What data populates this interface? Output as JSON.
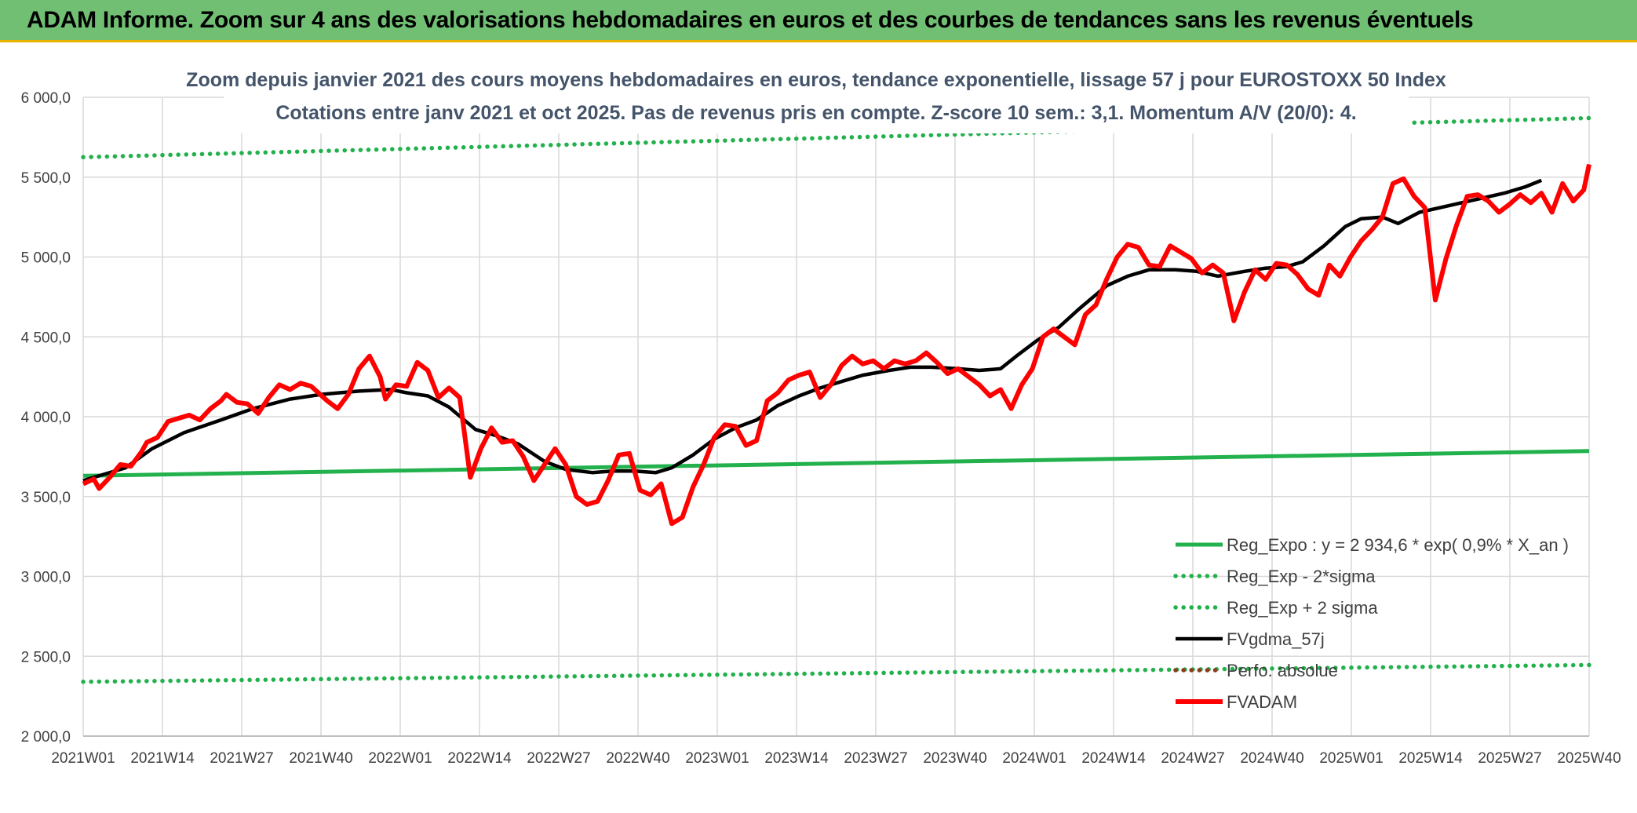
{
  "banner": {
    "title": "ADAM Informe. Zoom sur 4 ans des valorisations hebdomadaires en euros et des courbes de tendances sans les revenus éventuels"
  },
  "chart_data": {
    "type": "line",
    "title": "Zoom depuis janvier 2021 des cours moyens hebdomadaires en euros, tendance exponentielle, lissage 57 j pour EUROSTOXX 50 Index",
    "subtitle": "Cotations entre janv 2021 et oct 2025. Pas de revenus pris en compte. Z-score 10 sem.: 3,1. Momentum A/V (20/0): 4.",
    "xlabel": "",
    "ylabel": "",
    "ylim": [
      2000,
      6000
    ],
    "y_ticks": [
      "2 000,0",
      "2 500,0",
      "3 000,0",
      "3 500,0",
      "4 000,0",
      "4 500,0",
      "5 000,0",
      "5 500,0",
      "6 000,0"
    ],
    "x_ticks": [
      "2021W01",
      "2021W14",
      "2021W27",
      "2021W40",
      "2022W01",
      "2022W14",
      "2022W27",
      "2022W40",
      "2023W01",
      "2023W14",
      "2023W27",
      "2023W40",
      "2024W01",
      "2024W14",
      "2024W27",
      "2024W40",
      "2025W01",
      "2025W14",
      "2025W27",
      "2025W40"
    ],
    "grid": true,
    "legend_position": "bottom-right",
    "colors": {
      "green": "#22b14c",
      "black": "#000000",
      "red": "#ff0000",
      "brown": "#8b3a1a"
    },
    "series": [
      {
        "name": "Reg_Expo : y = 2 934,6 * exp( 0,9% *  X_an )",
        "style": "solid-green",
        "points": [
          [
            0,
            3630
          ],
          [
            247,
            3785
          ]
        ]
      },
      {
        "name": "Reg_Exp - 2*sigma",
        "style": "dotted-green",
        "points": [
          [
            0,
            2340
          ],
          [
            247,
            2445
          ]
        ]
      },
      {
        "name": "Reg_Exp + 2 sigma",
        "style": "dotted-green",
        "points": [
          [
            0,
            5625
          ],
          [
            247,
            5870
          ]
        ]
      },
      {
        "name": "FVgdma_57j",
        "style": "solid-black",
        "points": [
          [
            0,
            3600
          ],
          [
            8,
            3680
          ],
          [
            13,
            3800
          ],
          [
            19,
            3900
          ],
          [
            26,
            3980
          ],
          [
            32,
            4050
          ],
          [
            39,
            4110
          ],
          [
            45,
            4140
          ],
          [
            52,
            4160
          ],
          [
            58,
            4170
          ],
          [
            61,
            4150
          ],
          [
            65,
            4130
          ],
          [
            69,
            4060
          ],
          [
            74,
            3920
          ],
          [
            78,
            3880
          ],
          [
            82,
            3830
          ],
          [
            87,
            3720
          ],
          [
            91,
            3670
          ],
          [
            96,
            3650
          ],
          [
            100,
            3660
          ],
          [
            104,
            3660
          ],
          [
            108,
            3650
          ],
          [
            111,
            3680
          ],
          [
            115,
            3760
          ],
          [
            119,
            3860
          ],
          [
            123,
            3930
          ],
          [
            127,
            3980
          ],
          [
            131,
            4070
          ],
          [
            135,
            4130
          ],
          [
            139,
            4180
          ],
          [
            143,
            4220
          ],
          [
            147,
            4260
          ],
          [
            152,
            4290
          ],
          [
            156,
            4310
          ],
          [
            160,
            4310
          ],
          [
            165,
            4300
          ],
          [
            169,
            4290
          ],
          [
            173,
            4300
          ],
          [
            176,
            4380
          ],
          [
            180,
            4480
          ],
          [
            184,
            4560
          ],
          [
            188,
            4680
          ],
          [
            193,
            4820
          ],
          [
            197,
            4880
          ],
          [
            201,
            4920
          ],
          [
            206,
            4920
          ],
          [
            210,
            4910
          ],
          [
            214,
            4880
          ],
          [
            219,
            4910
          ],
          [
            223,
            4930
          ],
          [
            227,
            4940
          ],
          [
            230,
            4970
          ],
          [
            234,
            5070
          ],
          [
            238,
            5190
          ],
          [
            241,
            5240
          ],
          [
            245,
            5250
          ],
          [
            248,
            5210
          ],
          [
            252,
            5280
          ],
          [
            256,
            5310
          ],
          [
            260,
            5340
          ],
          [
            264,
            5370
          ],
          [
            268,
            5400
          ],
          [
            272,
            5440
          ],
          [
            275,
            5480
          ]
        ]
      },
      {
        "name": "Perfo. absolue",
        "style": "dotted-brown",
        "points": []
      },
      {
        "name": "FVADAM",
        "style": "solid-red",
        "points": [
          [
            0,
            3580
          ],
          [
            2,
            3610
          ],
          [
            3,
            3550
          ],
          [
            5,
            3620
          ],
          [
            7,
            3700
          ],
          [
            9,
            3690
          ],
          [
            11,
            3780
          ],
          [
            12,
            3840
          ],
          [
            14,
            3870
          ],
          [
            16,
            3970
          ],
          [
            18,
            3990
          ],
          [
            20,
            4010
          ],
          [
            22,
            3980
          ],
          [
            24,
            4050
          ],
          [
            26,
            4100
          ],
          [
            27,
            4140
          ],
          [
            29,
            4090
          ],
          [
            31,
            4080
          ],
          [
            33,
            4020
          ],
          [
            35,
            4120
          ],
          [
            37,
            4200
          ],
          [
            39,
            4170
          ],
          [
            41,
            4210
          ],
          [
            43,
            4190
          ],
          [
            45,
            4130
          ],
          [
            46,
            4100
          ],
          [
            48,
            4050
          ],
          [
            50,
            4140
          ],
          [
            52,
            4300
          ],
          [
            54,
            4380
          ],
          [
            56,
            4250
          ],
          [
            57,
            4110
          ],
          [
            59,
            4200
          ],
          [
            61,
            4190
          ],
          [
            63,
            4340
          ],
          [
            65,
            4290
          ],
          [
            67,
            4120
          ],
          [
            69,
            4180
          ],
          [
            71,
            4120
          ],
          [
            73,
            3620
          ],
          [
            75,
            3800
          ],
          [
            77,
            3930
          ],
          [
            79,
            3840
          ],
          [
            81,
            3850
          ],
          [
            83,
            3750
          ],
          [
            85,
            3600
          ],
          [
            87,
            3700
          ],
          [
            89,
            3800
          ],
          [
            91,
            3700
          ],
          [
            93,
            3500
          ],
          [
            95,
            3450
          ],
          [
            97,
            3470
          ],
          [
            99,
            3600
          ],
          [
            101,
            3760
          ],
          [
            103,
            3770
          ],
          [
            105,
            3540
          ],
          [
            107,
            3510
          ],
          [
            109,
            3580
          ],
          [
            111,
            3330
          ],
          [
            113,
            3370
          ],
          [
            115,
            3560
          ],
          [
            117,
            3700
          ],
          [
            119,
            3870
          ],
          [
            121,
            3950
          ],
          [
            123,
            3940
          ],
          [
            125,
            3820
          ],
          [
            127,
            3850
          ],
          [
            129,
            4100
          ],
          [
            131,
            4150
          ],
          [
            133,
            4230
          ],
          [
            135,
            4260
          ],
          [
            137,
            4280
          ],
          [
            139,
            4120
          ],
          [
            141,
            4200
          ],
          [
            143,
            4320
          ],
          [
            145,
            4380
          ],
          [
            147,
            4330
          ],
          [
            149,
            4350
          ],
          [
            151,
            4300
          ],
          [
            153,
            4350
          ],
          [
            155,
            4330
          ],
          [
            157,
            4350
          ],
          [
            159,
            4400
          ],
          [
            161,
            4340
          ],
          [
            163,
            4270
          ],
          [
            165,
            4300
          ],
          [
            167,
            4250
          ],
          [
            169,
            4200
          ],
          [
            171,
            4130
          ],
          [
            173,
            4170
          ],
          [
            175,
            4050
          ],
          [
            177,
            4200
          ],
          [
            179,
            4300
          ],
          [
            181,
            4500
          ],
          [
            183,
            4550
          ],
          [
            185,
            4500
          ],
          [
            187,
            4450
          ],
          [
            189,
            4640
          ],
          [
            191,
            4700
          ],
          [
            193,
            4860
          ],
          [
            195,
            5000
          ],
          [
            197,
            5080
          ],
          [
            199,
            5060
          ],
          [
            201,
            4950
          ],
          [
            203,
            4940
          ],
          [
            205,
            5070
          ],
          [
            207,
            5030
          ],
          [
            209,
            4990
          ],
          [
            211,
            4900
          ],
          [
            213,
            4950
          ],
          [
            215,
            4900
          ],
          [
            217,
            4600
          ],
          [
            219,
            4780
          ],
          [
            221,
            4920
          ],
          [
            223,
            4860
          ],
          [
            225,
            4960
          ],
          [
            227,
            4950
          ],
          [
            229,
            4890
          ],
          [
            231,
            4800
          ],
          [
            233,
            4760
          ],
          [
            235,
            4950
          ],
          [
            237,
            4880
          ],
          [
            239,
            5000
          ],
          [
            241,
            5100
          ],
          [
            243,
            5170
          ],
          [
            245,
            5250
          ],
          [
            247,
            5460
          ],
          [
            249,
            5490
          ],
          [
            251,
            5380
          ],
          [
            253,
            5310
          ],
          [
            255,
            4730
          ],
          [
            257,
            4990
          ],
          [
            259,
            5200
          ],
          [
            261,
            5380
          ],
          [
            263,
            5390
          ],
          [
            265,
            5350
          ],
          [
            267,
            5280
          ],
          [
            269,
            5330
          ],
          [
            271,
            5390
          ],
          [
            273,
            5340
          ],
          [
            275,
            5400
          ],
          [
            277,
            5280
          ],
          [
            279,
            5460
          ],
          [
            281,
            5350
          ],
          [
            283,
            5420
          ],
          [
            284,
            5580
          ]
        ]
      }
    ]
  }
}
